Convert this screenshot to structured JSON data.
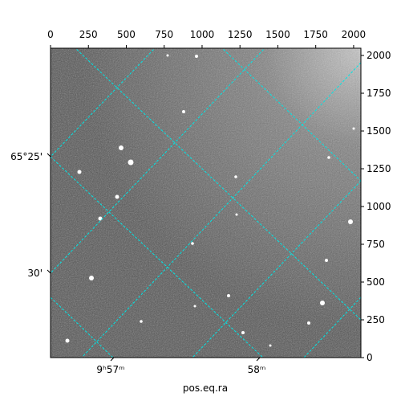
{
  "chart_data": {
    "type": "image",
    "xlabel": "pos.eq.ra",
    "xlim": [
      0,
      2048
    ],
    "xticks": [
      0,
      250,
      500,
      750,
      1000,
      1250,
      1500,
      1750,
      2000
    ],
    "ylim": [
      0,
      2048
    ],
    "yticks": [
      0,
      250,
      500,
      750,
      1000,
      1250,
      1500,
      1750,
      2000
    ],
    "ra_ticks": [
      "9ʰ57ᵐ",
      "58ᵐ"
    ],
    "dec_ticks": [
      "65°25'",
      "30'"
    ],
    "grid_color": "#00e5e5"
  }
}
